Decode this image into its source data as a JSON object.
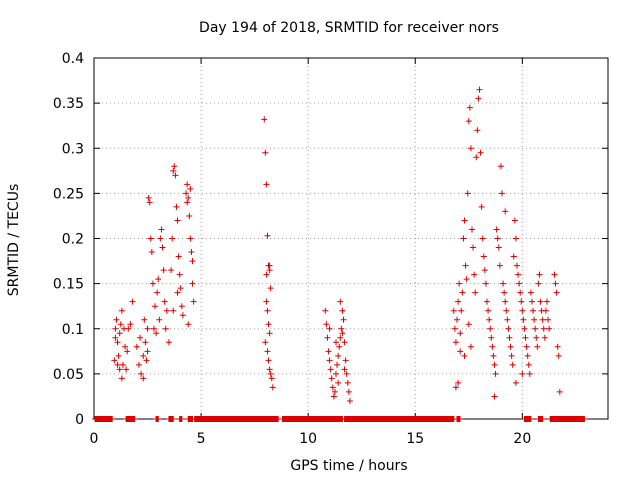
{
  "chart_data": {
    "type": "scatter",
    "title": "Day 194 of 2018, SRMTID for receiver nors",
    "xlabel": "GPS time / hours",
    "ylabel": "SRMTID / TECUs",
    "xlim": [
      0,
      24
    ],
    "ylim": [
      0,
      0.4
    ],
    "x_ticks": [
      0,
      5,
      10,
      15,
      20
    ],
    "y_ticks": [
      0,
      0.05,
      0.1,
      0.15,
      0.2,
      0.25,
      0.3,
      0.35,
      0.4
    ],
    "x_tick_labels": [
      "0",
      "5",
      "10",
      "15",
      "20"
    ],
    "y_tick_labels": [
      "0",
      "0.05",
      "0.1",
      "0.15",
      "0.2",
      "0.25",
      "0.3",
      "0.35",
      "0.4"
    ],
    "grid": true,
    "marker": "+",
    "marker_color": "#dd0000",
    "series": [
      {
        "name": "SRMTID",
        "points": [
          [
            0.95,
            0.065
          ],
          [
            1.0,
            0.09
          ],
          [
            1.05,
            0.11
          ],
          [
            1.1,
            0.085
          ],
          [
            1.15,
            0.07
          ],
          [
            1.2,
            0.095
          ],
          [
            1.25,
            0.105
          ],
          [
            1.3,
            0.12
          ],
          [
            1.35,
            0.06
          ],
          [
            1.4,
            0.1
          ],
          [
            1.45,
            0.08
          ],
          [
            1.5,
            0.055
          ],
          [
            1.55,
            0.075
          ],
          [
            1.6,
            0.1
          ],
          [
            1.7,
            0.105
          ],
          [
            1.8,
            0.13
          ],
          [
            1.1,
            0.06
          ],
          [
            1.2,
            0.055
          ],
          [
            1.3,
            0.045
          ],
          [
            1.0,
            0.1
          ],
          [
            2.0,
            0.08
          ],
          [
            2.1,
            0.06
          ],
          [
            2.15,
            0.09
          ],
          [
            2.2,
            0.05
          ],
          [
            2.3,
            0.07
          ],
          [
            2.35,
            0.11
          ],
          [
            2.4,
            0.085
          ],
          [
            2.45,
            0.065
          ],
          [
            2.5,
            0.1
          ],
          [
            2.55,
            0.245
          ],
          [
            2.6,
            0.24
          ],
          [
            2.65,
            0.2
          ],
          [
            2.7,
            0.185
          ],
          [
            2.75,
            0.15
          ],
          [
            2.8,
            0.1
          ],
          [
            2.85,
            0.125
          ],
          [
            2.9,
            0.095
          ],
          [
            2.95,
            0.14
          ],
          [
            3.0,
            0.155
          ],
          [
            3.05,
            0.11
          ],
          [
            3.1,
            0.2
          ],
          [
            3.15,
            0.21
          ],
          [
            3.2,
            0.19
          ],
          [
            3.25,
            0.165
          ],
          [
            3.3,
            0.13
          ],
          [
            3.35,
            0.1
          ],
          [
            3.4,
            0.12
          ],
          [
            3.5,
            0.085
          ],
          [
            2.3,
            0.045
          ],
          [
            2.5,
            0.075
          ],
          [
            3.6,
            0.165
          ],
          [
            3.65,
            0.2
          ],
          [
            3.7,
            0.275
          ],
          [
            3.75,
            0.28
          ],
          [
            3.8,
            0.27
          ],
          [
            3.85,
            0.235
          ],
          [
            3.9,
            0.22
          ],
          [
            3.95,
            0.18
          ],
          [
            4.0,
            0.16
          ],
          [
            4.05,
            0.145
          ],
          [
            4.1,
            0.125
          ],
          [
            4.15,
            0.115
          ],
          [
            3.7,
            0.12
          ],
          [
            3.9,
            0.14
          ],
          [
            4.3,
            0.25
          ],
          [
            4.35,
            0.26
          ],
          [
            4.4,
            0.245
          ],
          [
            4.45,
            0.225
          ],
          [
            4.5,
            0.2
          ],
          [
            4.55,
            0.185
          ],
          [
            4.6,
            0.15
          ],
          [
            4.65,
            0.13
          ],
          [
            4.5,
            0.255
          ],
          [
            4.4,
            0.105
          ],
          [
            4.6,
            0.175
          ],
          [
            4.35,
            0.24
          ],
          [
            7.95,
            0.332
          ],
          [
            8.0,
            0.295
          ],
          [
            8.05,
            0.26
          ],
          [
            8.1,
            0.203
          ],
          [
            8.15,
            0.17
          ],
          [
            8.2,
            0.165
          ],
          [
            8.25,
            0.145
          ],
          [
            8.05,
            0.13
          ],
          [
            8.1,
            0.12
          ],
          [
            8.15,
            0.105
          ],
          [
            8.2,
            0.095
          ],
          [
            8.0,
            0.085
          ],
          [
            8.1,
            0.075
          ],
          [
            8.15,
            0.065
          ],
          [
            8.2,
            0.055
          ],
          [
            8.25,
            0.05
          ],
          [
            8.3,
            0.045
          ],
          [
            8.35,
            0.035
          ],
          [
            8.05,
            0.16
          ],
          [
            8.2,
            0.17
          ],
          [
            10.8,
            0.12
          ],
          [
            10.85,
            0.105
          ],
          [
            10.9,
            0.09
          ],
          [
            10.95,
            0.075
          ],
          [
            11.0,
            0.065
          ],
          [
            11.05,
            0.055
          ],
          [
            11.1,
            0.045
          ],
          [
            11.15,
            0.035
          ],
          [
            11.2,
            0.025
          ],
          [
            11.25,
            0.03
          ],
          [
            11.3,
            0.05
          ],
          [
            11.35,
            0.06
          ],
          [
            11.4,
            0.07
          ],
          [
            11.45,
            0.08
          ],
          [
            11.5,
            0.09
          ],
          [
            11.55,
            0.1
          ],
          [
            11.6,
            0.095
          ],
          [
            11.65,
            0.11
          ],
          [
            11.7,
            0.085
          ],
          [
            11.75,
            0.065
          ],
          [
            11.8,
            0.05
          ],
          [
            11.85,
            0.04
          ],
          [
            11.9,
            0.03
          ],
          [
            11.95,
            0.02
          ],
          [
            11.5,
            0.13
          ],
          [
            11.6,
            0.12
          ],
          [
            11.0,
            0.1
          ],
          [
            11.4,
            0.04
          ],
          [
            11.7,
            0.055
          ],
          [
            11.3,
            0.085
          ],
          [
            16.8,
            0.12
          ],
          [
            16.85,
            0.1
          ],
          [
            16.9,
            0.085
          ],
          [
            16.95,
            0.11
          ],
          [
            17.0,
            0.13
          ],
          [
            17.05,
            0.15
          ],
          [
            17.1,
            0.095
          ],
          [
            17.15,
            0.12
          ],
          [
            17.2,
            0.14
          ],
          [
            17.25,
            0.2
          ],
          [
            17.3,
            0.22
          ],
          [
            17.35,
            0.17
          ],
          [
            17.4,
            0.155
          ],
          [
            17.45,
            0.25
          ],
          [
            17.5,
            0.33
          ],
          [
            17.55,
            0.345
          ],
          [
            17.6,
            0.3
          ],
          [
            17.65,
            0.21
          ],
          [
            17.7,
            0.19
          ],
          [
            17.75,
            0.16
          ],
          [
            17.8,
            0.14
          ],
          [
            17.85,
            0.29
          ],
          [
            17.9,
            0.32
          ],
          [
            17.95,
            0.355
          ],
          [
            18.0,
            0.365
          ],
          [
            18.05,
            0.295
          ],
          [
            18.1,
            0.235
          ],
          [
            18.15,
            0.2
          ],
          [
            18.2,
            0.18
          ],
          [
            18.25,
            0.165
          ],
          [
            18.3,
            0.15
          ],
          [
            18.35,
            0.13
          ],
          [
            18.4,
            0.12
          ],
          [
            18.45,
            0.11
          ],
          [
            18.5,
            0.1
          ],
          [
            18.55,
            0.09
          ],
          [
            18.6,
            0.08
          ],
          [
            18.65,
            0.07
          ],
          [
            18.7,
            0.06
          ],
          [
            18.75,
            0.05
          ],
          [
            18.8,
            0.21
          ],
          [
            18.85,
            0.2
          ],
          [
            18.9,
            0.19
          ],
          [
            18.95,
            0.17
          ],
          [
            19.0,
            0.28
          ],
          [
            19.05,
            0.25
          ],
          [
            19.1,
            0.15
          ],
          [
            19.15,
            0.14
          ],
          [
            19.2,
            0.13
          ],
          [
            19.25,
            0.12
          ],
          [
            19.3,
            0.11
          ],
          [
            19.35,
            0.1
          ],
          [
            19.4,
            0.09
          ],
          [
            19.45,
            0.08
          ],
          [
            19.5,
            0.07
          ],
          [
            19.55,
            0.06
          ],
          [
            19.6,
            0.18
          ],
          [
            19.65,
            0.22
          ],
          [
            19.7,
            0.2
          ],
          [
            19.75,
            0.17
          ],
          [
            19.8,
            0.16
          ],
          [
            19.85,
            0.15
          ],
          [
            19.9,
            0.14
          ],
          [
            19.95,
            0.13
          ],
          [
            20.0,
            0.12
          ],
          [
            20.05,
            0.11
          ],
          [
            20.1,
            0.1
          ],
          [
            20.15,
            0.09
          ],
          [
            20.2,
            0.08
          ],
          [
            20.25,
            0.07
          ],
          [
            20.3,
            0.06
          ],
          [
            20.35,
            0.05
          ],
          [
            20.4,
            0.14
          ],
          [
            20.45,
            0.13
          ],
          [
            20.5,
            0.12
          ],
          [
            20.55,
            0.11
          ],
          [
            20.6,
            0.1
          ],
          [
            20.65,
            0.09
          ],
          [
            20.7,
            0.08
          ],
          [
            20.75,
            0.15
          ],
          [
            20.8,
            0.16
          ],
          [
            20.85,
            0.13
          ],
          [
            20.9,
            0.12
          ],
          [
            20.95,
            0.11
          ],
          [
            21.0,
            0.1
          ],
          [
            21.05,
            0.09
          ],
          [
            21.1,
            0.12
          ],
          [
            21.15,
            0.13
          ],
          [
            21.2,
            0.11
          ],
          [
            21.25,
            0.1
          ],
          [
            21.5,
            0.16
          ],
          [
            21.55,
            0.15
          ],
          [
            21.6,
            0.14
          ],
          [
            21.65,
            0.08
          ],
          [
            21.7,
            0.07
          ],
          [
            21.75,
            0.03
          ],
          [
            16.9,
            0.035
          ],
          [
            17.0,
            0.04
          ],
          [
            18.7,
            0.025
          ],
          [
            17.3,
            0.07
          ],
          [
            17.6,
            0.08
          ],
          [
            17.1,
            0.075
          ],
          [
            19.2,
            0.23
          ],
          [
            19.7,
            0.04
          ],
          [
            20.0,
            0.05
          ],
          [
            17.5,
            0.105
          ]
        ]
      }
    ],
    "zero_ranges": [
      [
        0.05,
        0.85
      ],
      [
        1.5,
        1.9
      ],
      [
        2.9,
        3.0
      ],
      [
        3.5,
        3.7
      ],
      [
        4.0,
        4.1
      ],
      [
        4.4,
        4.6
      ],
      [
        4.7,
        8.6
      ],
      [
        8.8,
        11.6
      ],
      [
        11.7,
        16.8
      ],
      [
        16.95,
        17.1
      ],
      [
        20.1,
        20.4
      ],
      [
        20.75,
        20.95
      ],
      [
        21.3,
        22.9
      ]
    ]
  }
}
